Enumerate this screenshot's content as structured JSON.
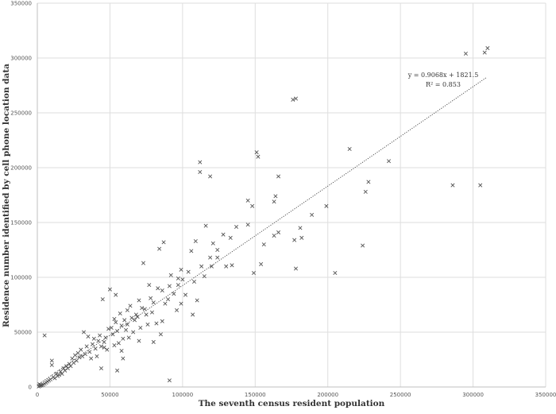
{
  "chart_data": {
    "type": "scatter",
    "title": "",
    "xlabel": "The seventh census resident population",
    "ylabel": "Residence number identified by cell phone location data",
    "xlim": [
      0,
      350000
    ],
    "ylim": [
      0,
      350000
    ],
    "x_ticks": [
      0,
      50000,
      100000,
      150000,
      200000,
      250000,
      300000,
      350000
    ],
    "y_ticks": [
      0,
      50000,
      100000,
      150000,
      200000,
      250000,
      300000,
      350000
    ],
    "grid": true,
    "marker": "x",
    "trendline": {
      "equation": "y = 0.9068x + 1821.5",
      "r_squared": "R² = 0.853",
      "slope": 0.9068,
      "intercept": 1821.5,
      "x_range": [
        0,
        309000
      ]
    },
    "points": [
      [
        310000,
        309000
      ],
      [
        295000,
        304000
      ],
      [
        308000,
        305000
      ],
      [
        178000,
        263000
      ],
      [
        176000,
        262000
      ],
      [
        151000,
        214000
      ],
      [
        152000,
        210000
      ],
      [
        112000,
        205000
      ],
      [
        112000,
        196000
      ],
      [
        119000,
        192000
      ],
      [
        215000,
        217000
      ],
      [
        242000,
        206000
      ],
      [
        228000,
        187000
      ],
      [
        226000,
        178000
      ],
      [
        286000,
        184000
      ],
      [
        305000,
        184000
      ],
      [
        166000,
        192000
      ],
      [
        164000,
        174000
      ],
      [
        163000,
        169000
      ],
      [
        145000,
        170000
      ],
      [
        148000,
        165000
      ],
      [
        199000,
        165000
      ],
      [
        189000,
        157000
      ],
      [
        181000,
        145000
      ],
      [
        182000,
        136000
      ],
      [
        177000,
        134000
      ],
      [
        166000,
        141000
      ],
      [
        163000,
        138000
      ],
      [
        156000,
        130000
      ],
      [
        178000,
        108000
      ],
      [
        205000,
        104000
      ],
      [
        224000,
        129000
      ],
      [
        145000,
        148000
      ],
      [
        137000,
        146000
      ],
      [
        133000,
        136000
      ],
      [
        128000,
        139000
      ],
      [
        121000,
        131000
      ],
      [
        124000,
        125000
      ],
      [
        116000,
        147000
      ],
      [
        119000,
        118000
      ],
      [
        113000,
        110000
      ],
      [
        109000,
        133000
      ],
      [
        106000,
        124000
      ],
      [
        104000,
        105000
      ],
      [
        99000,
        107000
      ],
      [
        97000,
        99000
      ],
      [
        92000,
        102000
      ],
      [
        87000,
        132000
      ],
      [
        84000,
        126000
      ],
      [
        73000,
        113000
      ],
      [
        149000,
        104000
      ],
      [
        154000,
        112000
      ],
      [
        134000,
        111000
      ],
      [
        130000,
        110000
      ],
      [
        124000,
        118000
      ],
      [
        120000,
        110000
      ],
      [
        115000,
        101000
      ],
      [
        108000,
        96000
      ],
      [
        102000,
        84000
      ],
      [
        110000,
        79000
      ],
      [
        107000,
        66000
      ],
      [
        100000,
        98000
      ],
      [
        97000,
        93000
      ],
      [
        94000,
        85000
      ],
      [
        91000,
        92000
      ],
      [
        90000,
        80000
      ],
      [
        88000,
        76000
      ],
      [
        86000,
        88000
      ],
      [
        83000,
        90000
      ],
      [
        80000,
        77000
      ],
      [
        78000,
        81000
      ],
      [
        77000,
        93000
      ],
      [
        75000,
        66000
      ],
      [
        74000,
        71000
      ],
      [
        72000,
        72000
      ],
      [
        70000,
        79000
      ],
      [
        68000,
        66000
      ],
      [
        67000,
        61000
      ],
      [
        65000,
        63000
      ],
      [
        64000,
        74000
      ],
      [
        62000,
        57000
      ],
      [
        60000,
        61000
      ],
      [
        58000,
        56000
      ],
      [
        57000,
        67000
      ],
      [
        55000,
        51000
      ],
      [
        54000,
        59000
      ],
      [
        52000,
        48000
      ],
      [
        51000,
        54000
      ],
      [
        50000,
        89000
      ],
      [
        54000,
        84000
      ],
      [
        45000,
        80000
      ],
      [
        49000,
        53000
      ],
      [
        47000,
        45000
      ],
      [
        46000,
        41000
      ],
      [
        44000,
        37000
      ],
      [
        43000,
        47000
      ],
      [
        42000,
        42000
      ],
      [
        40000,
        35000
      ],
      [
        39000,
        44000
      ],
      [
        38000,
        39000
      ],
      [
        36000,
        32000
      ],
      [
        35000,
        46000
      ],
      [
        34000,
        37000
      ],
      [
        33000,
        30000
      ],
      [
        32000,
        50000
      ],
      [
        31000,
        28000
      ],
      [
        30000,
        34000
      ],
      [
        29000,
        27000
      ],
      [
        28000,
        31000
      ],
      [
        27000,
        24000
      ],
      [
        26000,
        29000
      ],
      [
        25000,
        22000
      ],
      [
        24000,
        26000
      ],
      [
        23000,
        19000
      ],
      [
        22000,
        21000
      ],
      [
        21000,
        17000
      ],
      [
        20000,
        19000
      ],
      [
        19000,
        15000
      ],
      [
        18000,
        17000
      ],
      [
        17000,
        12000
      ],
      [
        16000,
        14000
      ],
      [
        15000,
        11000
      ],
      [
        14000,
        10000
      ],
      [
        13000,
        12000
      ],
      [
        12000,
        8000
      ],
      [
        11000,
        9000
      ],
      [
        10000,
        24000
      ],
      [
        10000,
        20000
      ],
      [
        9000,
        7000
      ],
      [
        8000,
        6000
      ],
      [
        7000,
        5000
      ],
      [
        6000,
        4000
      ],
      [
        5000,
        47000
      ],
      [
        5000,
        3000
      ],
      [
        4000,
        2000
      ],
      [
        3000,
        1500
      ],
      [
        2000,
        1000
      ],
      [
        1500,
        2500
      ],
      [
        1000,
        500
      ],
      [
        2500,
        1800
      ],
      [
        44000,
        17000
      ],
      [
        55000,
        15000
      ],
      [
        59000,
        26000
      ],
      [
        58000,
        33000
      ],
      [
        80000,
        41000
      ],
      [
        85000,
        48000
      ],
      [
        91000,
        6000
      ],
      [
        70000,
        42000
      ],
      [
        66000,
        50000
      ],
      [
        63000,
        45000
      ],
      [
        61000,
        52000
      ],
      [
        56000,
        40000
      ],
      [
        53000,
        38000
      ],
      [
        48000,
        34000
      ],
      [
        41000,
        28000
      ],
      [
        37000,
        26000
      ],
      [
        96000,
        70000
      ],
      [
        99000,
        76000
      ],
      [
        82000,
        58000
      ],
      [
        86000,
        60000
      ],
      [
        79000,
        68000
      ],
      [
        76000,
        57000
      ],
      [
        71000,
        54000
      ],
      [
        69000,
        64000
      ],
      [
        62000,
        70000
      ],
      [
        59000,
        44000
      ],
      [
        53000,
        62000
      ],
      [
        46000,
        36000
      ]
    ]
  }
}
